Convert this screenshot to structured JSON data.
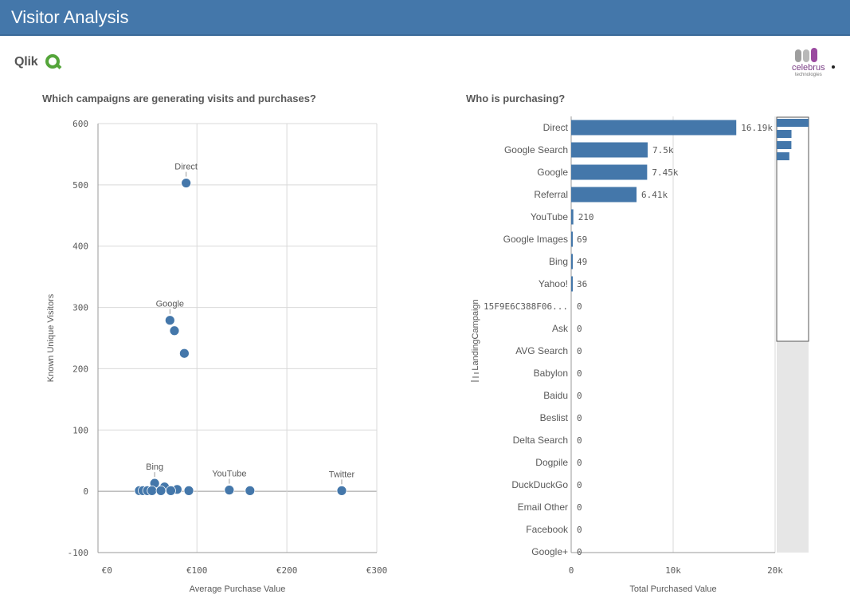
{
  "header": {
    "title": "Visitor Analysis"
  },
  "logos": {
    "qlik": "Qlik",
    "celebrus": "celebrus",
    "celebrus_sub": "technologies"
  },
  "colors": {
    "accent": "#4477aa",
    "header_bg": "#4477aa",
    "qlik_green": "#54a53a",
    "celebrus_purple": "#9b4aa0"
  },
  "scatter_title": "Which campaigns are generating visits and purchases?",
  "bar_title": "Who is purchasing?",
  "chart_data": [
    {
      "type": "scatter",
      "title": "Which campaigns are generating visits and purchases?",
      "xlabel": "Average Purchase Value",
      "ylabel": "Known Unique Visitors",
      "xlim": [
        -10,
        300
      ],
      "ylim": [
        -100,
        600
      ],
      "x_ticks": [
        0,
        100,
        200,
        300
      ],
      "x_tick_labels": [
        "€0",
        "€100",
        "€200",
        "€300"
      ],
      "y_ticks": [
        -100,
        0,
        100,
        200,
        300,
        400,
        500,
        600
      ],
      "y_tick_labels": [
        "-100",
        "0",
        "100",
        "200",
        "300",
        "400",
        "500",
        "600"
      ],
      "grid": true,
      "points": [
        {
          "x": 88,
          "y": 503,
          "label": "Direct"
        },
        {
          "x": 70,
          "y": 279,
          "label": "Google"
        },
        {
          "x": 75,
          "y": 262,
          "label": ""
        },
        {
          "x": 86,
          "y": 225,
          "label": ""
        },
        {
          "x": 53,
          "y": 13,
          "label": "Bing"
        },
        {
          "x": 64,
          "y": 7,
          "label": ""
        },
        {
          "x": 78,
          "y": 3,
          "label": ""
        },
        {
          "x": 36,
          "y": 1,
          "label": ""
        },
        {
          "x": 40,
          "y": 1,
          "label": ""
        },
        {
          "x": 45,
          "y": 1,
          "label": ""
        },
        {
          "x": 50,
          "y": 1,
          "label": ""
        },
        {
          "x": 60,
          "y": 1,
          "label": ""
        },
        {
          "x": 71,
          "y": 1,
          "label": ""
        },
        {
          "x": 91,
          "y": 1,
          "label": ""
        },
        {
          "x": 136,
          "y": 2,
          "label": "YouTube"
        },
        {
          "x": 159,
          "y": 1,
          "label": ""
        },
        {
          "x": 261,
          "y": 1,
          "label": "Twitter"
        }
      ]
    },
    {
      "type": "bar",
      "orientation": "horizontal",
      "title": "Who is purchasing?",
      "xlabel": "Total Purchased Value",
      "ylabel": "LandingCampaign",
      "xlim": [
        0,
        20000
      ],
      "x_ticks": [
        0,
        10000,
        20000
      ],
      "x_tick_labels": [
        "0",
        "10k",
        "20k"
      ],
      "grid": true,
      "categories": [
        "Direct",
        "Google Search",
        "Google",
        "Referral",
        "YouTube",
        "Google Images",
        "Bing",
        "Yahoo!",
        "15F9E6C388F06...",
        "Ask",
        "AVG Search",
        "Babylon",
        "Baidu",
        "Beslist",
        "Delta Search",
        "Dogpile",
        "DuckDuckGo",
        "Email Other",
        "Facebook",
        "Google+"
      ],
      "values": [
        16190,
        7500,
        7450,
        6410,
        210,
        69,
        49,
        36,
        0,
        0,
        0,
        0,
        0,
        0,
        0,
        0,
        0,
        0,
        0,
        0
      ],
      "value_labels": [
        "16.19k",
        "7.5k",
        "7.45k",
        "6.41k",
        "210",
        "69",
        "49",
        "36",
        "0",
        "0",
        "0",
        "0",
        "0",
        "0",
        "0",
        "0",
        "0",
        "0",
        "0",
        "0"
      ]
    }
  ]
}
